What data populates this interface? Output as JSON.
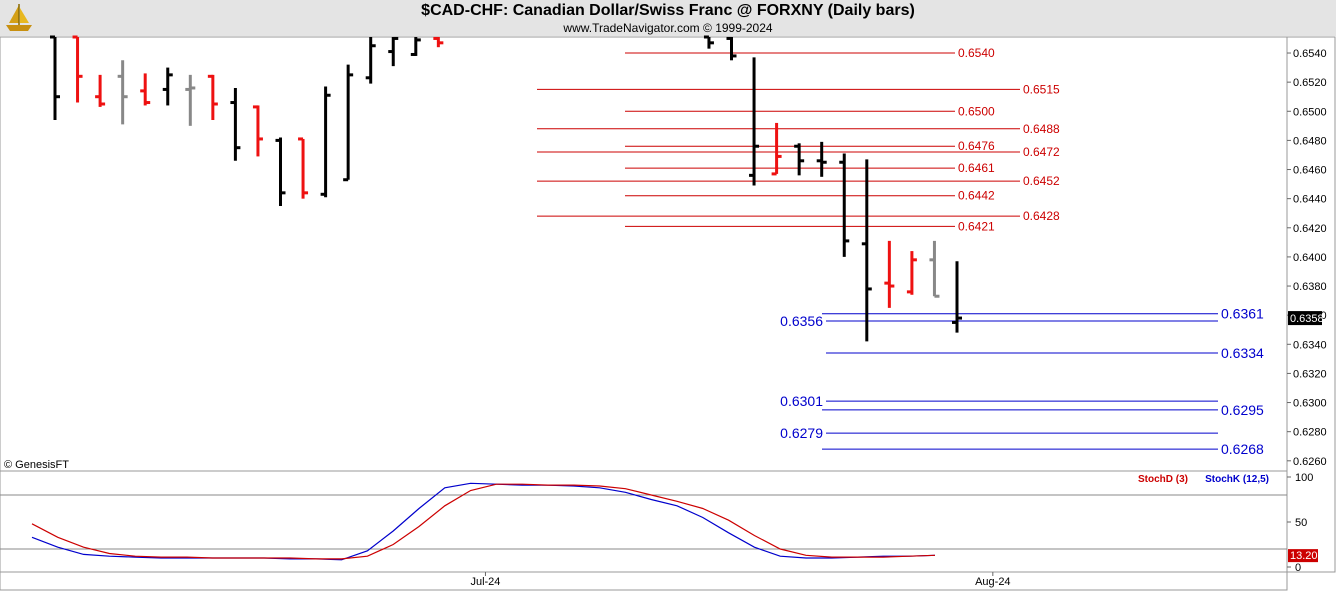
{
  "header": {
    "title": "$CAD-CHF:  Canadian Dollar/Swiss Franc @ FORXNY  (Daily bars)",
    "subtitle": "www.TradeNavigator.com © 1999-2024",
    "logo_icon": "gold-ship-icon"
  },
  "copyright": "© GenesisFT",
  "colors": {
    "up": "#000000",
    "down": "#ee1111",
    "neutral": "#888888",
    "resistance": "#cc0000",
    "support": "#0000cc",
    "stochK": "#0000cc",
    "stochD": "#cc0000",
    "background": "#ffffff",
    "header": "#e4e4e4"
  },
  "chart_data": [
    {
      "type": "ohlc",
      "title": "$CAD-CHF:  Canadian Dollar/Swiss Franc @ FORXNY  (Daily bars)",
      "ylim": [
        0.6253,
        0.6551
      ],
      "y_ticks": [
        0.654,
        0.652,
        0.65,
        0.648,
        0.646,
        0.644,
        0.642,
        0.64,
        0.638,
        0.636,
        0.634,
        0.632,
        0.63,
        0.628,
        0.626
      ],
      "y_tick_labels": [
        "0.6540",
        "0.6520",
        "0.6500",
        "0.6480",
        "0.6460",
        "0.6440",
        "0.6420",
        "0.6400",
        "0.6380",
        "0.6360",
        "0.6340",
        "0.6320",
        "0.6300",
        "0.6280",
        "0.6260"
      ],
      "x_labels": [
        {
          "label": "Jul-24",
          "bar": 19
        },
        {
          "label": "Aug-24",
          "bar": 41.5
        }
      ],
      "last_price": "0.6358",
      "bars": [
        {
          "o": 0.6551,
          "h": 0.6551,
          "l": 0.6494,
          "c": 0.651,
          "color": "up"
        },
        {
          "o": 0.6551,
          "h": 0.6551,
          "l": 0.6506,
          "c": 0.6524,
          "color": "down"
        },
        {
          "o": 0.651,
          "h": 0.6525,
          "l": 0.6503,
          "c": 0.6505,
          "color": "down"
        },
        {
          "o": 0.6524,
          "h": 0.6535,
          "l": 0.6491,
          "c": 0.651,
          "color": "neutral"
        },
        {
          "o": 0.6514,
          "h": 0.6526,
          "l": 0.6504,
          "c": 0.6506,
          "color": "down"
        },
        {
          "o": 0.6515,
          "h": 0.653,
          "l": 0.6504,
          "c": 0.6525,
          "color": "up"
        },
        {
          "o": 0.6515,
          "h": 0.6525,
          "l": 0.649,
          "c": 0.6516,
          "color": "neutral"
        },
        {
          "o": 0.6524,
          "h": 0.6525,
          "l": 0.6494,
          "c": 0.6505,
          "color": "down"
        },
        {
          "o": 0.6506,
          "h": 0.6516,
          "l": 0.6466,
          "c": 0.6475,
          "color": "up"
        },
        {
          "o": 0.6503,
          "h": 0.6504,
          "l": 0.6469,
          "c": 0.6481,
          "color": "down"
        },
        {
          "o": 0.648,
          "h": 0.6482,
          "l": 0.6435,
          "c": 0.6444,
          "color": "up"
        },
        {
          "o": 0.6481,
          "h": 0.6481,
          "l": 0.644,
          "c": 0.6444,
          "color": "down"
        },
        {
          "o": 0.6443,
          "h": 0.6517,
          "l": 0.6441,
          "c": 0.6511,
          "color": "up"
        },
        {
          "o": 0.6453,
          "h": 0.6532,
          "l": 0.6453,
          "c": 0.6525,
          "color": "up"
        },
        {
          "o": 0.6523,
          "h": 0.6551,
          "l": 0.6519,
          "c": 0.6545,
          "color": "up"
        },
        {
          "o": 0.6541,
          "h": 0.6551,
          "l": 0.6531,
          "c": 0.655,
          "color": "up"
        },
        {
          "o": 0.6539,
          "h": 0.6551,
          "l": 0.6538,
          "c": 0.6549,
          "color": "up"
        },
        {
          "o": 0.655,
          "h": 0.6551,
          "l": 0.6544,
          "c": 0.6547,
          "color": "down"
        },
        null,
        null,
        null,
        null,
        null,
        null,
        null,
        null,
        null,
        null,
        null,
        {
          "o": 0.6551,
          "h": 0.6551,
          "l": 0.6543,
          "c": 0.6547,
          "color": "up"
        },
        {
          "o": 0.655,
          "h": 0.6551,
          "l": 0.6535,
          "c": 0.6538,
          "color": "up"
        },
        {
          "o": 0.6456,
          "h": 0.6537,
          "l": 0.6449,
          "c": 0.6476,
          "color": "up"
        },
        {
          "o": 0.6457,
          "h": 0.6492,
          "l": 0.6457,
          "c": 0.6469,
          "color": "down"
        },
        {
          "o": 0.6476,
          "h": 0.6478,
          "l": 0.6456,
          "c": 0.6466,
          "color": "up"
        },
        {
          "o": 0.6466,
          "h": 0.6479,
          "l": 0.6455,
          "c": 0.6465,
          "color": "up"
        },
        {
          "o": 0.6465,
          "h": 0.6471,
          "l": 0.64,
          "c": 0.6411,
          "color": "up"
        },
        {
          "o": 0.6409,
          "h": 0.6467,
          "l": 0.6342,
          "c": 0.6378,
          "color": "up"
        },
        {
          "o": 0.6382,
          "h": 0.6411,
          "l": 0.6365,
          "c": 0.638,
          "color": "down"
        },
        {
          "o": 0.6376,
          "h": 0.6404,
          "l": 0.6374,
          "c": 0.6398,
          "color": "down"
        },
        {
          "o": 0.6398,
          "h": 0.6411,
          "l": 0.6373,
          "c": 0.6373,
          "color": "neutral"
        },
        {
          "o": 0.6355,
          "h": 0.6397,
          "l": 0.6348,
          "c": 0.6358,
          "color": "up"
        }
      ],
      "resistance_lines": [
        {
          "value": 0.654,
          "label": "0.6540"
        },
        {
          "value": 0.6515,
          "label": "0.6515"
        },
        {
          "value": 0.65,
          "label": "0.6500"
        },
        {
          "value": 0.6488,
          "label": "0.6488"
        },
        {
          "value": 0.6476,
          "label": "0.6476"
        },
        {
          "value": 0.6472,
          "label": "0.6472"
        },
        {
          "value": 0.6461,
          "label": "0.6461"
        },
        {
          "value": 0.6452,
          "label": "0.6452"
        },
        {
          "value": 0.6442,
          "label": "0.6442"
        },
        {
          "value": 0.6428,
          "label": "0.6428"
        },
        {
          "value": 0.6421,
          "label": "0.6421"
        }
      ],
      "support_lines": [
        {
          "value": 0.6361,
          "label": "0.6361"
        },
        {
          "value": 0.6356,
          "label": "0.6356"
        },
        {
          "value": 0.6334,
          "label": "0.6334"
        },
        {
          "value": 0.6301,
          "label": "0.6301"
        },
        {
          "value": 0.6295,
          "label": "0.6295"
        },
        {
          "value": 0.6279,
          "label": "0.6279"
        },
        {
          "value": 0.6268,
          "label": "0.6268"
        }
      ]
    },
    {
      "type": "line",
      "ylim": [
        0,
        100
      ],
      "y_ticks": [
        100,
        50,
        0
      ],
      "y_tick_labels": [
        "100",
        "50",
        "0"
      ],
      "reference_lines": [
        80,
        20
      ],
      "last_value": "13.20",
      "series": [
        {
          "name": "StochK (12,5)",
          "color_key": "stochK",
          "values": [
            33,
            22,
            14,
            12,
            11,
            10,
            10,
            10,
            10,
            10,
            9,
            9,
            8,
            18,
            40,
            65,
            88,
            93,
            92,
            91,
            91,
            90,
            88,
            83,
            75,
            68,
            55,
            38,
            22,
            12,
            10,
            10,
            11,
            12,
            12,
            13
          ]
        },
        {
          "name": "StochD (3)",
          "color_key": "stochD",
          "values": [
            48,
            33,
            22,
            15,
            12,
            11,
            11,
            10,
            10,
            10,
            10,
            9,
            9,
            12,
            25,
            45,
            68,
            85,
            92,
            92,
            91,
            91,
            90,
            87,
            80,
            73,
            65,
            52,
            35,
            20,
            13,
            11,
            11,
            11,
            12,
            13
          ]
        }
      ]
    }
  ]
}
